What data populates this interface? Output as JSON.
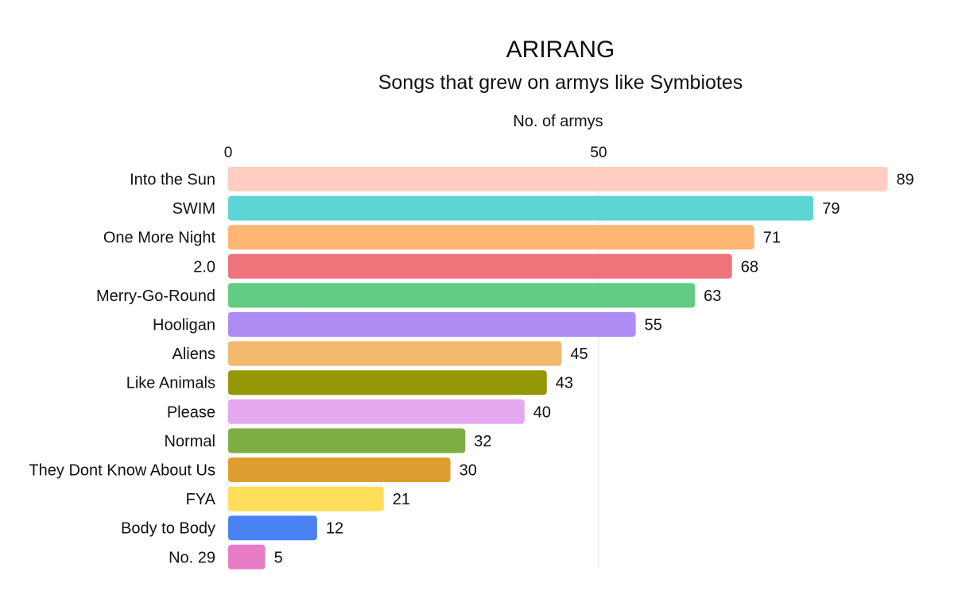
{
  "chart_data": {
    "type": "bar",
    "orientation": "horizontal",
    "title": "ARIRANG",
    "subtitle": "Songs that grew on armys like Symbiotes",
    "xlabel": "No. of armys",
    "ylabel": "",
    "xlim": [
      0,
      90
    ],
    "x_ticks": [
      0,
      50
    ],
    "x_axis_position": "top",
    "grid": true,
    "legend": "none",
    "categories": [
      "Into the Sun",
      "SWIM",
      "One More Night",
      "2.0",
      "Merry-Go-Round",
      "Hooligan",
      "Aliens",
      "Like Animals",
      "Please",
      "Normal",
      "They Dont Know About Us",
      "FYA",
      "Body to Body",
      "No. 29"
    ],
    "values": [
      89,
      79,
      71,
      68,
      63,
      55,
      45,
      43,
      40,
      32,
      30,
      21,
      12,
      5
    ],
    "colors": [
      "#FFCDC2",
      "#5DD5D5",
      "#FFB574",
      "#EE737B",
      "#62CB84",
      "#AE8CF4",
      "#F2B86E",
      "#959806",
      "#E4A8EE",
      "#7EAD44",
      "#DF9F30",
      "#FEDE5B",
      "#4A82F4",
      "#E87BC6"
    ]
  }
}
